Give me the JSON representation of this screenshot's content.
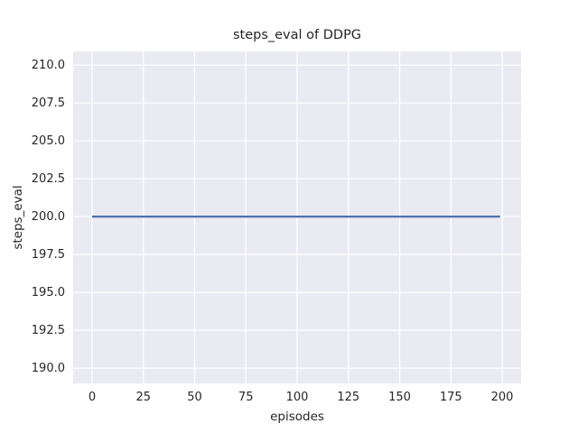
{
  "chart_data": {
    "type": "line",
    "title": "steps_eval of DDPG",
    "xlabel": "episodes",
    "ylabel": "steps_eval",
    "xlim": [
      -9.25,
      209.25
    ],
    "ylim": [
      189.0,
      210.9
    ],
    "x_ticks": [
      0,
      25,
      50,
      75,
      100,
      125,
      150,
      175,
      200
    ],
    "x_tick_labels": [
      "0",
      "25",
      "50",
      "75",
      "100",
      "125",
      "150",
      "175",
      "200"
    ],
    "y_ticks": [
      190.0,
      192.5,
      195.0,
      197.5,
      200.0,
      202.5,
      205.0,
      207.5,
      210.0
    ],
    "y_tick_labels": [
      "190.0",
      "192.5",
      "195.0",
      "197.5",
      "200.0",
      "202.5",
      "205.0",
      "207.5",
      "210.0"
    ],
    "grid": true,
    "legend_position": "none",
    "series": [
      {
        "name": "DDPG",
        "color": "#4c72b0",
        "points": [
          [
            0,
            200.0
          ],
          [
            199,
            200.0
          ]
        ]
      }
    ],
    "style": {
      "figure_bg": "#ffffff",
      "axes_bg": "#eaeaf2",
      "grid_color": "#ffffff",
      "text_color": "#262626",
      "line_width": 2.2,
      "grid_width": 1.3
    }
  }
}
